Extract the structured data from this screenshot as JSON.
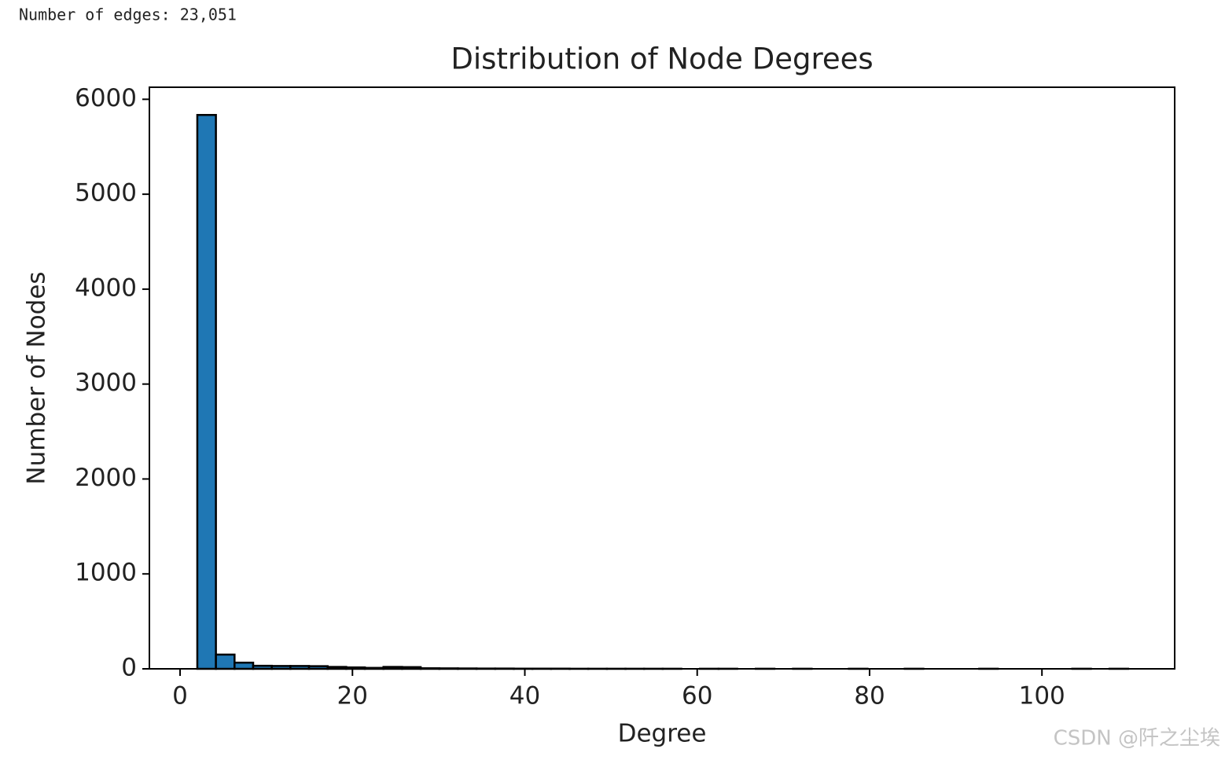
{
  "header": {
    "text": "Number of edges: 23,051"
  },
  "watermark": "CSDN @阡之尘埃",
  "chart_data": {
    "type": "histogram",
    "title": "Distribution of Node Degrees",
    "x_label": "Degree",
    "y_label": "Number of Nodes",
    "color": "#1f77b4",
    "edgecolor": "#000000",
    "bins": [
      2,
      4.16,
      6.32,
      8.48,
      10.64,
      12.8,
      14.96,
      17.12,
      19.28,
      21.44,
      23.6,
      25.76,
      27.92,
      30.08,
      32.24,
      34.4,
      36.56,
      38.72,
      40.88,
      43.04,
      45.2,
      47.36,
      49.52,
      51.68,
      53.84,
      56,
      58.16,
      60.32,
      62.48,
      64.64,
      66.8,
      68.96,
      71.12,
      73.28,
      75.44,
      77.6,
      79.76,
      81.92,
      84.08,
      86.24,
      88.4,
      90.56,
      92.72,
      94.88,
      97.04,
      99.2,
      101.36,
      103.52,
      105.68,
      107.84,
      110
    ],
    "counts": [
      5835,
      150,
      65,
      32,
      30,
      30,
      28,
      20,
      15,
      10,
      20,
      18,
      6,
      5,
      4,
      3,
      3,
      2,
      2,
      2,
      1,
      1,
      1,
      1,
      1,
      1,
      0,
      1,
      1,
      0,
      1,
      0,
      1,
      0,
      0,
      1,
      0,
      0,
      1,
      0,
      0,
      0,
      1,
      0,
      0,
      0,
      0,
      1,
      0,
      1
    ],
    "xlim": [
      -3.56,
      115.4
    ],
    "ylim": [
      0,
      6127
    ],
    "xticks": [
      0,
      20,
      40,
      60,
      80,
      100
    ],
    "yticks": [
      0,
      1000,
      2000,
      3000,
      4000,
      5000,
      6000
    ]
  }
}
